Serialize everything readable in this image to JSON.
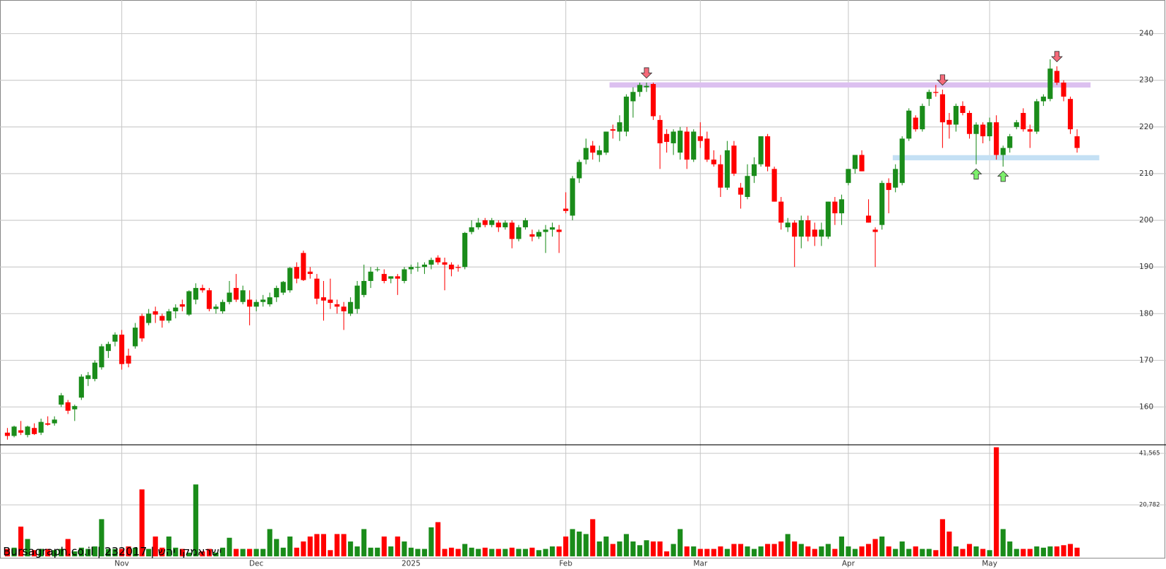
{
  "watermark": "Bursagraph.co.il | 232017 | ישראמקו יהש",
  "chart_data": {
    "type": "candlestick",
    "colors": {
      "up": "#1a8c1a",
      "down": "#ff0000"
    },
    "grid": true,
    "xlim": [
      -1.1,
      164.7
    ],
    "xticks": [
      {
        "value": 17,
        "label": "Nov"
      },
      {
        "value": 37,
        "label": "Dec"
      },
      {
        "value": 60,
        "label": "2025"
      },
      {
        "value": 83,
        "label": "Feb"
      },
      {
        "value": 103,
        "label": "Mar"
      },
      {
        "value": 125,
        "label": "Apr"
      },
      {
        "value": 146,
        "label": "May"
      }
    ],
    "ylim": [
      151.9,
      247.2
    ],
    "yticks": [
      160,
      170,
      180,
      190,
      200,
      210,
      220,
      230,
      240
    ],
    "volume_ylim": [
      0,
      45000
    ],
    "volume_yticks": [
      {
        "value": 20782,
        "label": "20,782"
      },
      {
        "value": 41565,
        "label": "41,565"
      }
    ],
    "levels": [
      {
        "value": 229,
        "start": 89.5,
        "end": 161,
        "color": "#dcc0f0"
      },
      {
        "value": 213.4,
        "start": 131.6,
        "end": 162.3,
        "color": "#c4e0f4"
      }
    ],
    "markers": [
      {
        "index": 95,
        "direction": "down"
      },
      {
        "index": 139,
        "direction": "down"
      },
      {
        "index": 156,
        "direction": "down"
      },
      {
        "index": 144,
        "direction": "up"
      },
      {
        "index": 148,
        "direction": "up"
      }
    ],
    "ohlc": [
      [
        154.5,
        155.5,
        153,
        153.8
      ],
      [
        153.8,
        156,
        153.5,
        155.8
      ],
      [
        155,
        157,
        154,
        154.5
      ],
      [
        154,
        156,
        153.5,
        155.8
      ],
      [
        155.5,
        156.5,
        154,
        154.2
      ],
      [
        154.5,
        157.5,
        154,
        156.8
      ],
      [
        156.5,
        158,
        156,
        156.2
      ],
      [
        156.5,
        158,
        156,
        157.3
      ],
      [
        160.5,
        163,
        160,
        162.5
      ],
      [
        161,
        161.5,
        158.5,
        159.2
      ],
      [
        159.5,
        160.5,
        157,
        160.2
      ],
      [
        162,
        167,
        161.5,
        166.5
      ],
      [
        166,
        167.5,
        164.5,
        166.8
      ],
      [
        166,
        170,
        165.5,
        169.5
      ],
      [
        168.5,
        173.5,
        168,
        173
      ],
      [
        172,
        174,
        170.5,
        173.5
      ],
      [
        174,
        176,
        173,
        175.5
      ],
      [
        175.5,
        176.5,
        168,
        169.2
      ],
      [
        171,
        172.5,
        168.5,
        169.3
      ],
      [
        173,
        178,
        172.5,
        177
      ],
      [
        179.5,
        180,
        174,
        174.7
      ],
      [
        178,
        181,
        177.5,
        180
      ],
      [
        180.5,
        181.5,
        178,
        179.8
      ],
      [
        179.5,
        180,
        177,
        178.5
      ],
      [
        178.5,
        181,
        178,
        180.5
      ],
      [
        180.5,
        182,
        179,
        181.3
      ],
      [
        182,
        183,
        180.5,
        181.5
      ],
      [
        179.8,
        185,
        179.5,
        184.8
      ],
      [
        183,
        186.5,
        182,
        185.5
      ],
      [
        185.5,
        186.2,
        184.5,
        185
      ],
      [
        185,
        185.5,
        180.5,
        181
      ],
      [
        181,
        182,
        180,
        181.5
      ],
      [
        180.5,
        183,
        180,
        182.5
      ],
      [
        182.5,
        187,
        182,
        184.5
      ],
      [
        185.5,
        188.5,
        182.5,
        183
      ],
      [
        182.5,
        186,
        182,
        185
      ],
      [
        183,
        185,
        177.5,
        181.5
      ],
      [
        181.5,
        183,
        180.5,
        182.5
      ],
      [
        182.5,
        184,
        181.5,
        183
      ],
      [
        182,
        184.5,
        181.5,
        183.5
      ],
      [
        183.5,
        186,
        182.5,
        185.5
      ],
      [
        184.5,
        187,
        184,
        186.8
      ],
      [
        185,
        190,
        184.5,
        189.8
      ],
      [
        190,
        191,
        186.5,
        187.5
      ],
      [
        193,
        193.5,
        187,
        187.2
      ],
      [
        189,
        190,
        187.5,
        188.5
      ],
      [
        187.5,
        188.5,
        182,
        183.2
      ],
      [
        183.5,
        187,
        178.5,
        182.8
      ],
      [
        183,
        187.5,
        181,
        182.3
      ],
      [
        182,
        183,
        180,
        181.5
      ],
      [
        181.5,
        182.5,
        176.5,
        180.5
      ],
      [
        180,
        183.5,
        179.5,
        182.5
      ],
      [
        181,
        187,
        180,
        186
      ],
      [
        184,
        190.5,
        183.5,
        187
      ],
      [
        187,
        190,
        185.5,
        189
      ],
      [
        189.5,
        190,
        189,
        189.5
      ],
      [
        188.5,
        189.5,
        186.5,
        187
      ],
      [
        187.5,
        188,
        186.5,
        188
      ],
      [
        188,
        188.5,
        184,
        187.5
      ],
      [
        187,
        190,
        186.5,
        189.5
      ],
      [
        189.5,
        190.5,
        188.5,
        190
      ],
      [
        190,
        191,
        189,
        190
      ],
      [
        190,
        191,
        188.5,
        190.5
      ],
      [
        190.5,
        192,
        189.5,
        191.5
      ],
      [
        192,
        192.5,
        190.5,
        191
      ],
      [
        191,
        192,
        185,
        190.5
      ],
      [
        190.5,
        191,
        188,
        189.5
      ],
      [
        190,
        190.5,
        189,
        189.8
      ],
      [
        190,
        197.5,
        189.5,
        197.3
      ],
      [
        197.5,
        200,
        197,
        198.5
      ],
      [
        198.5,
        200.5,
        198,
        199.5
      ],
      [
        200,
        200.5,
        198.5,
        199
      ],
      [
        199,
        200.5,
        198.5,
        200
      ],
      [
        199.5,
        200,
        197.5,
        198.5
      ],
      [
        198.5,
        200,
        198,
        199.5
      ],
      [
        199.5,
        200,
        194,
        196
      ],
      [
        196,
        199,
        195.5,
        198.5
      ],
      [
        198.5,
        200.5,
        198,
        200
      ],
      [
        197,
        198,
        195.5,
        196.5
      ],
      [
        196.5,
        198,
        196,
        197.5
      ],
      [
        197.5,
        199,
        193,
        198
      ],
      [
        198,
        199.5,
        196.5,
        198.5
      ],
      [
        198,
        199,
        193,
        197.5
      ],
      [
        202.5,
        206,
        201.5,
        202
      ],
      [
        201,
        209.5,
        200,
        209
      ],
      [
        209,
        213,
        208,
        212.5
      ],
      [
        213,
        217.5,
        212,
        215.5
      ],
      [
        216,
        217,
        213,
        214.5
      ],
      [
        214,
        216,
        212.5,
        215
      ],
      [
        214.5,
        219,
        214,
        219
      ],
      [
        219.5,
        220.5,
        217.5,
        219.2
      ],
      [
        219,
        222.5,
        217,
        221
      ],
      [
        219,
        227,
        218,
        226.5
      ],
      [
        225.5,
        228.5,
        222,
        227.5
      ],
      [
        227.5,
        229.5,
        226.5,
        229
      ],
      [
        228.5,
        229.5,
        227.5,
        228.8
      ],
      [
        229.2,
        229.5,
        221.5,
        222.3
      ],
      [
        221.5,
        222.5,
        211,
        216.5
      ],
      [
        218.5,
        219.5,
        214.5,
        216.8
      ],
      [
        216.5,
        219.5,
        214,
        219
      ],
      [
        214.5,
        220,
        213,
        219.2
      ],
      [
        219,
        220,
        211,
        213
      ],
      [
        213,
        219.5,
        212.5,
        219
      ],
      [
        218,
        221,
        215.5,
        217
      ],
      [
        217.5,
        219,
        212.5,
        213
      ],
      [
        213,
        215,
        211.5,
        212
      ],
      [
        212,
        214,
        205,
        207
      ],
      [
        207,
        217,
        206.5,
        215
      ],
      [
        216,
        217,
        209.5,
        210
      ],
      [
        207,
        208,
        202.5,
        205.5
      ],
      [
        205,
        212,
        204.5,
        209.5
      ],
      [
        209.5,
        213.5,
        208,
        212
      ],
      [
        212,
        218,
        211.5,
        218
      ],
      [
        218,
        218.5,
        210.5,
        211.5
      ],
      [
        211,
        211.5,
        204,
        204
      ],
      [
        204,
        205,
        198,
        199.5
      ],
      [
        198.5,
        200.5,
        197.5,
        199.5
      ],
      [
        199.5,
        200,
        190,
        196.5
      ],
      [
        196.5,
        201,
        194,
        200
      ],
      [
        200,
        201,
        195.5,
        196.5
      ],
      [
        198,
        199.5,
        194.5,
        196.5
      ],
      [
        196.5,
        199.5,
        194.5,
        198
      ],
      [
        196.5,
        204,
        196,
        204
      ],
      [
        204,
        205,
        199,
        201.5
      ],
      [
        201.5,
        205.5,
        199,
        204.5
      ],
      [
        208,
        211,
        207.5,
        211
      ],
      [
        211,
        214,
        210,
        214
      ],
      [
        214,
        215,
        210.5,
        210.5
      ],
      [
        201,
        204.5,
        199.5,
        199.5
      ],
      [
        198,
        198.5,
        190,
        197.5
      ],
      [
        199,
        208.5,
        198,
        208
      ],
      [
        208,
        209,
        201.5,
        206.5
      ],
      [
        207,
        212,
        206,
        211
      ],
      [
        208,
        218,
        207.5,
        217.5
      ],
      [
        217.5,
        224,
        217,
        223.5
      ],
      [
        222,
        222.5,
        219,
        219.5
      ],
      [
        219.5,
        225,
        219,
        224.5
      ],
      [
        226,
        228,
        224.5,
        227.5
      ],
      [
        227.5,
        229,
        226.5,
        227.3
      ],
      [
        227,
        228,
        215.5,
        221
      ],
      [
        221.5,
        223,
        217.5,
        220.5
      ],
      [
        220.5,
        225,
        219,
        224.5
      ],
      [
        224.5,
        225.5,
        222.5,
        223
      ],
      [
        223,
        223.5,
        217.5,
        218.5
      ],
      [
        218.5,
        221,
        212,
        220.5
      ],
      [
        220.5,
        221,
        216.5,
        218
      ],
      [
        218,
        222,
        217,
        221
      ],
      [
        221,
        222.5,
        213,
        214
      ],
      [
        214,
        216,
        211.5,
        215.5
      ],
      [
        215.5,
        218.5,
        214.5,
        218
      ],
      [
        220,
        221.5,
        219.5,
        221
      ],
      [
        223,
        224,
        219,
        219.5
      ],
      [
        219.5,
        220.5,
        215.5,
        219
      ],
      [
        219,
        226,
        218.5,
        225.5
      ],
      [
        225.5,
        227,
        224.5,
        226.5
      ],
      [
        226,
        234.5,
        225.5,
        232.5
      ],
      [
        232,
        233,
        229,
        229.5
      ],
      [
        229.5,
        230,
        225.5,
        226.5
      ],
      [
        226,
        226.5,
        218.5,
        219.5
      ],
      [
        218,
        219.5,
        214.5,
        215.5
      ]
    ],
    "volume": [
      3000,
      3500,
      12000,
      7000,
      2500,
      3000,
      3000,
      2500,
      3000,
      7000,
      2000,
      3500,
      3000,
      4000,
      15000,
      3000,
      3000,
      3000,
      4000,
      3500,
      27000,
      3000,
      8000,
      3500,
      8000,
      3500,
      3000,
      1500,
      29000,
      2000,
      3000,
      1500,
      3500,
      7500,
      3000,
      3000,
      3000,
      3000,
      3000,
      11000,
      7000,
      3500,
      8000,
      3500,
      6000,
      8000,
      9000,
      9000,
      2500,
      9000,
      9000,
      6000,
      4000,
      11000,
      3500,
      3500,
      8000,
      4000,
      8000,
      6000,
      3500,
      3000,
      3000,
      11700,
      13800,
      3000,
      3500,
      3000,
      5000,
      3500,
      3000,
      3500,
      3000,
      3000,
      3000,
      3500,
      3000,
      3000,
      3500,
      2500,
      3000,
      4000,
      4000,
      8000,
      11000,
      10000,
      9000,
      15000,
      6000,
      8000,
      5000,
      6000,
      9000,
      6000,
      4500,
      6500,
      6000,
      6000,
      2000,
      5000,
      11000,
      4000,
      4000,
      3000,
      3000,
      3000,
      4000,
      3000,
      5000,
      5000,
      4000,
      3000,
      4000,
      5000,
      5000,
      6000,
      9000,
      6000,
      5000,
      4000,
      3000,
      4000,
      5000,
      3000,
      8000,
      4000,
      3000,
      4000,
      5000,
      7000,
      8000,
      4000,
      3000,
      6000,
      3000,
      4000,
      3000,
      3000,
      2500,
      15000,
      10000,
      4000,
      3000,
      5000,
      4000,
      3000,
      2500,
      44000,
      11000,
      6000,
      3000,
      3000,
      3000,
      4000,
      3500,
      4000,
      4000,
      4500,
      5000,
      3500
    ]
  }
}
